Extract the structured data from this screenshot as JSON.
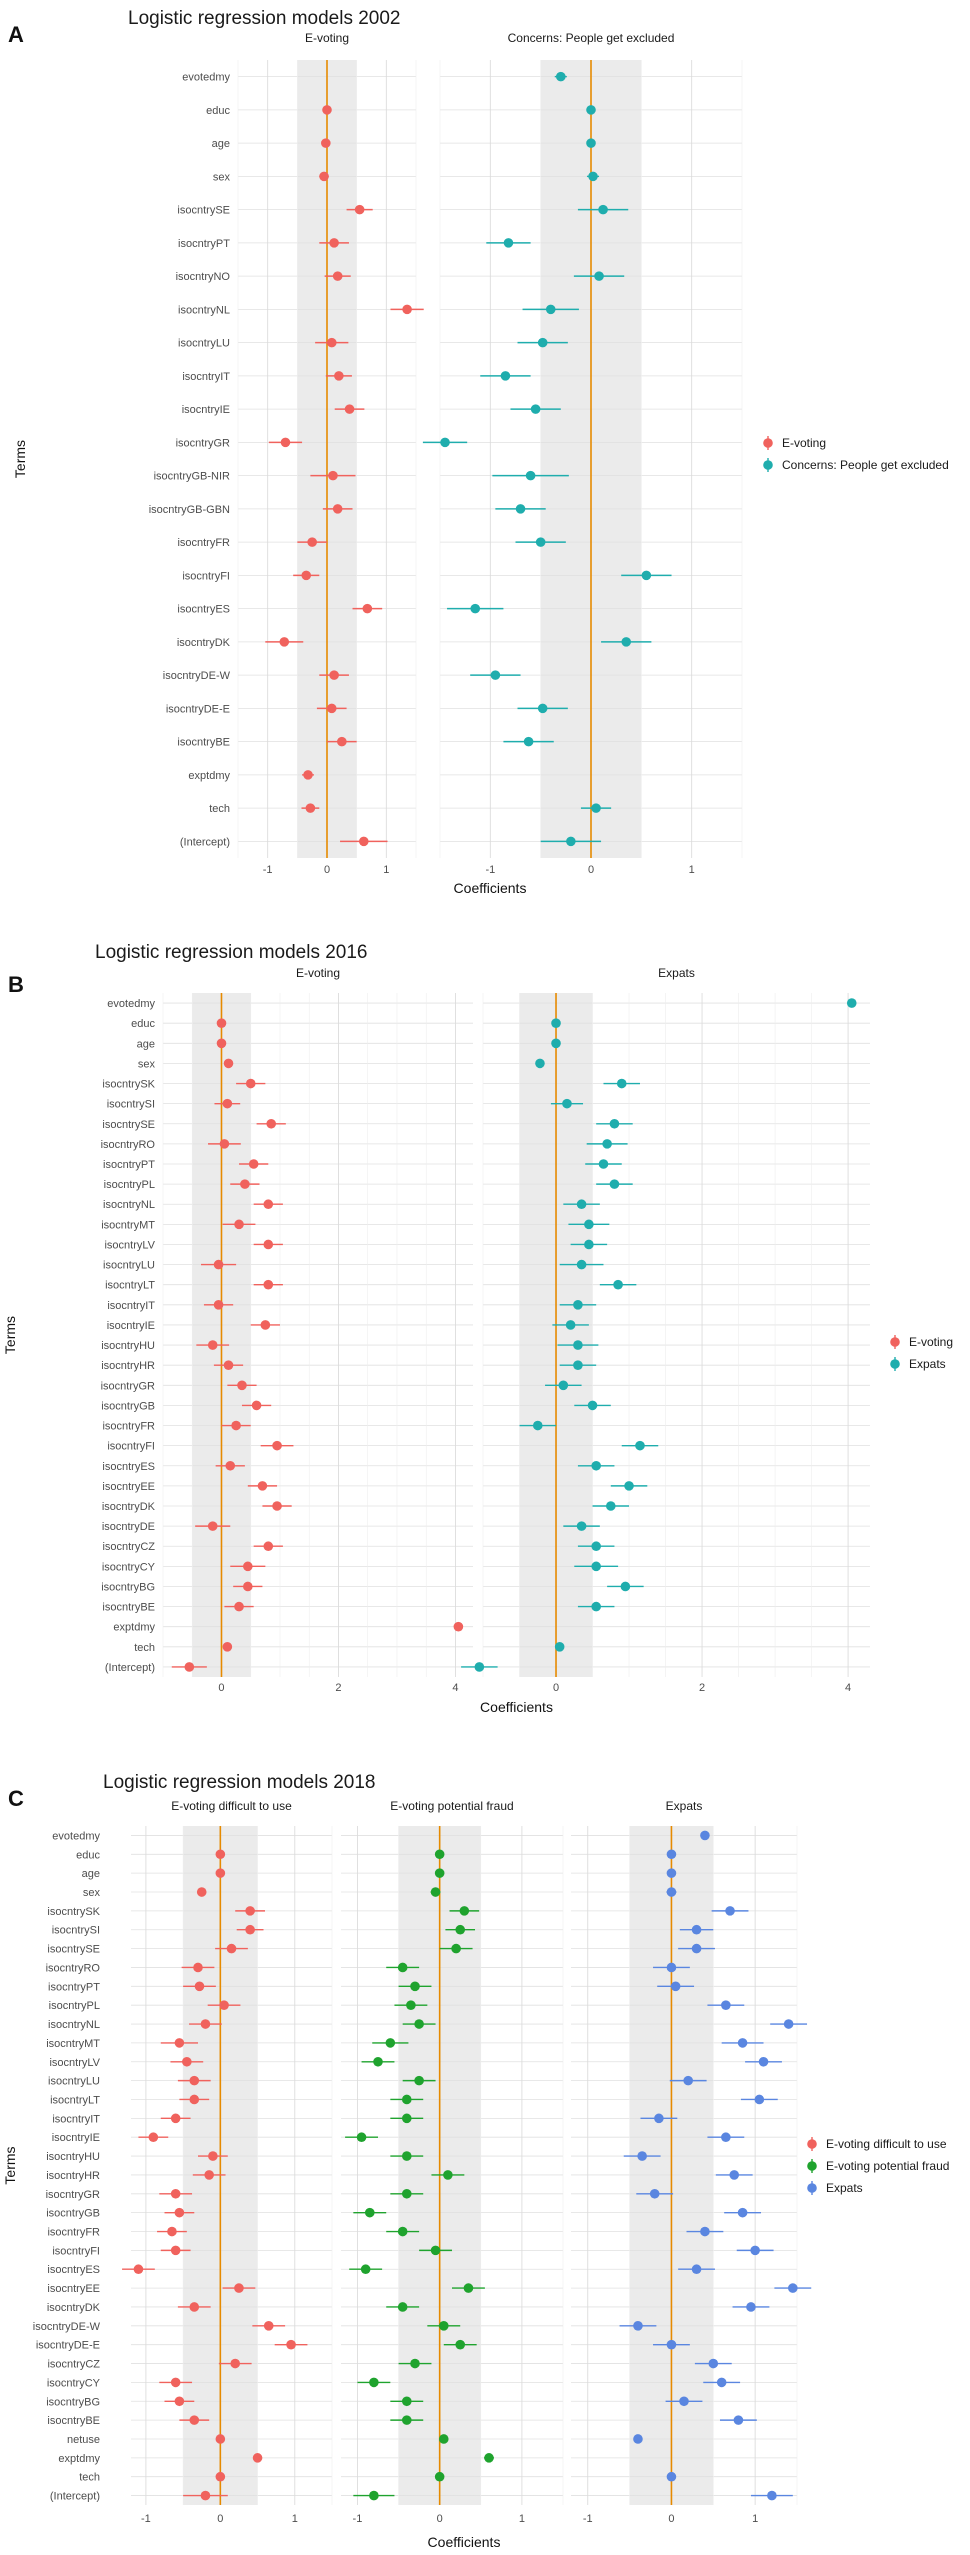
{
  "chart_data": [
    {
      "type": "scatter",
      "panel_label": "A",
      "title": "Logistic regression models 2002",
      "xlabel": "Coefficients",
      "ylabel": "Terms",
      "xlim": [
        -1.5,
        1.5
      ],
      "xticks": [
        -1,
        0,
        1
      ],
      "shade": [
        -0.5,
        0.5
      ],
      "terms": [
        "evotedmy",
        "educ",
        "age",
        "sex",
        "isocntrySE",
        "isocntryPT",
        "isocntryNO",
        "isocntryNL",
        "isocntryLU",
        "isocntryIT",
        "isocntryIE",
        "isocntryGR",
        "isocntryGB-NIR",
        "isocntryGB-GBN",
        "isocntryFR",
        "isocntryFI",
        "isocntryES",
        "isocntryDK",
        "isocntryDE-W",
        "isocntryDE-E",
        "isocntryBE",
        "exptdmy",
        "tech",
        "(Intercept)"
      ],
      "series": [
        {
          "name": "E-voting",
          "color": "#F0625D",
          "facet": "E-voting",
          "values": [
            null,
            0.0,
            -0.02,
            -0.05,
            0.55,
            0.12,
            0.18,
            1.35,
            0.08,
            0.2,
            0.38,
            -0.7,
            0.1,
            0.18,
            -0.25,
            -0.35,
            0.68,
            -0.72,
            0.12,
            0.08,
            0.25,
            -0.32,
            -0.28,
            0.62
          ],
          "errors": [
            null,
            0.04,
            0.04,
            0.08,
            0.22,
            0.25,
            0.22,
            0.28,
            0.28,
            0.22,
            0.25,
            0.28,
            0.38,
            0.25,
            0.25,
            0.22,
            0.25,
            0.32,
            0.25,
            0.25,
            0.25,
            0.1,
            0.15,
            0.4
          ]
        },
        {
          "name": "Concerns: People get excluded",
          "color": "#1FADAD",
          "facet": "Concerns: People get excluded",
          "values": [
            -0.3,
            0.0,
            0.0,
            0.02,
            0.12,
            -0.82,
            0.08,
            -0.4,
            -0.48,
            -0.85,
            -0.55,
            -1.45,
            -0.6,
            -0.7,
            -0.5,
            0.55,
            -1.15,
            0.35,
            -0.95,
            -0.48,
            -0.62,
            null,
            0.05,
            -0.2
          ],
          "errors": [
            0.06,
            0.03,
            0.03,
            0.06,
            0.25,
            0.22,
            0.25,
            0.28,
            0.25,
            0.25,
            0.25,
            0.22,
            0.38,
            0.25,
            0.25,
            0.25,
            0.28,
            0.25,
            0.25,
            0.25,
            0.25,
            null,
            0.15,
            0.3
          ]
        }
      ],
      "legend_position": "right"
    },
    {
      "type": "scatter",
      "panel_label": "B",
      "title": "Logistic regression models 2016",
      "xlabel": "Coefficients",
      "ylabel": "Terms",
      "xlim": [
        -1.0,
        4.3
      ],
      "xticks": [
        0,
        2,
        4
      ],
      "shade": [
        -0.5,
        0.5
      ],
      "terms": [
        "evotedmy",
        "educ",
        "age",
        "sex",
        "isocntrySK",
        "isocntrySI",
        "isocntrySE",
        "isocntryRO",
        "isocntryPT",
        "isocntryPL",
        "isocntryNL",
        "isocntryMT",
        "isocntryLV",
        "isocntryLU",
        "isocntryLT",
        "isocntryIT",
        "isocntryIE",
        "isocntryHU",
        "isocntryHR",
        "isocntryGR",
        "isocntryGB",
        "isocntryFR",
        "isocntryFI",
        "isocntryES",
        "isocntryEE",
        "isocntryDK",
        "isocntryDE",
        "isocntryCZ",
        "isocntryCY",
        "isocntryBG",
        "isocntryBE",
        "exptdmy",
        "tech",
        "(Intercept)"
      ],
      "series": [
        {
          "name": "E-voting",
          "color": "#F0625D",
          "facet": "E-voting",
          "values": [
            null,
            0.0,
            0.0,
            0.12,
            0.5,
            0.1,
            0.85,
            0.05,
            0.55,
            0.4,
            0.8,
            0.3,
            0.8,
            -0.05,
            0.8,
            -0.05,
            0.75,
            -0.15,
            0.12,
            0.35,
            0.6,
            0.25,
            0.95,
            0.15,
            0.7,
            0.95,
            -0.15,
            0.8,
            0.45,
            0.45,
            0.3,
            4.05,
            0.1,
            -0.55
          ],
          "errors": [
            null,
            0.03,
            0.03,
            0.06,
            0.25,
            0.22,
            0.25,
            0.28,
            0.25,
            0.25,
            0.25,
            0.28,
            0.25,
            0.3,
            0.25,
            0.25,
            0.25,
            0.28,
            0.25,
            0.25,
            0.25,
            0.25,
            0.28,
            0.25,
            0.25,
            0.25,
            0.3,
            0.25,
            0.3,
            0.25,
            0.25,
            0.06,
            0.05,
            0.3
          ]
        },
        {
          "name": "Expats",
          "color": "#1FADAD",
          "facet": "Expats",
          "values": [
            4.05,
            0.0,
            0.0,
            -0.22,
            0.9,
            0.15,
            0.8,
            0.7,
            0.65,
            0.8,
            0.35,
            0.45,
            0.45,
            0.35,
            0.85,
            0.3,
            0.2,
            0.3,
            0.3,
            0.1,
            0.5,
            -0.25,
            1.15,
            0.55,
            1.0,
            0.75,
            0.35,
            0.55,
            0.55,
            0.95,
            0.55,
            null,
            0.05,
            -1.05
          ],
          "errors": [
            0.06,
            0.03,
            0.03,
            0.06,
            0.25,
            0.22,
            0.25,
            0.28,
            0.25,
            0.25,
            0.25,
            0.28,
            0.25,
            0.3,
            0.25,
            0.25,
            0.25,
            0.28,
            0.25,
            0.25,
            0.25,
            0.25,
            0.25,
            0.25,
            0.25,
            0.25,
            0.25,
            0.25,
            0.3,
            0.25,
            0.25,
            null,
            0.05,
            0.25
          ]
        }
      ],
      "legend_position": "right"
    },
    {
      "type": "scatter",
      "panel_label": "C",
      "title": "Logistic regression models 2018",
      "xlabel": "Coefficients",
      "ylabel": "Terms",
      "xlim": [
        -1.2,
        1.5
      ],
      "xticks": [
        -1,
        0,
        1
      ],
      "shade": [
        -0.5,
        0.5
      ],
      "terms": [
        "evotedmy",
        "educ",
        "age",
        "sex",
        "isocntrySK",
        "isocntrySI",
        "isocntrySE",
        "isocntryRO",
        "isocntryPT",
        "isocntryPL",
        "isocntryNL",
        "isocntryMT",
        "isocntryLV",
        "isocntryLU",
        "isocntryLT",
        "isocntryIT",
        "isocntryIE",
        "isocntryHU",
        "isocntryHR",
        "isocntryGR",
        "isocntryGB",
        "isocntryFR",
        "isocntryFI",
        "isocntryES",
        "isocntryEE",
        "isocntryDK",
        "isocntryDE-W",
        "isocntryDE-E",
        "isocntryCZ",
        "isocntryCY",
        "isocntryBG",
        "isocntryBE",
        "netuse",
        "exptdmy",
        "tech",
        "(Intercept)"
      ],
      "series": [
        {
          "name": "E-voting difficult to use",
          "color": "#F0625D",
          "facet": "E-voting difficult to use",
          "values": [
            null,
            0.0,
            0.0,
            -0.25,
            0.4,
            0.4,
            0.15,
            -0.3,
            -0.28,
            0.05,
            -0.2,
            -0.55,
            -0.45,
            -0.35,
            -0.35,
            -0.6,
            -0.9,
            -0.1,
            -0.15,
            -0.6,
            -0.55,
            -0.65,
            -0.6,
            -1.1,
            0.25,
            -0.35,
            0.65,
            0.95,
            0.2,
            -0.6,
            -0.55,
            -0.35,
            0.0,
            0.5,
            0.0,
            -0.2
          ],
          "errors": [
            null,
            0.03,
            0.03,
            0.06,
            0.2,
            0.18,
            0.22,
            0.22,
            0.22,
            0.22,
            0.22,
            0.25,
            0.22,
            0.22,
            0.2,
            0.2,
            0.2,
            0.2,
            0.22,
            0.22,
            0.2,
            0.2,
            0.2,
            0.22,
            0.22,
            0.22,
            0.22,
            0.22,
            0.22,
            0.22,
            0.2,
            0.2,
            0.03,
            0.06,
            0.03,
            0.3
          ]
        },
        {
          "name": "E-voting potential fraud",
          "color": "#1FA32E",
          "facet": "E-voting potential fraud",
          "values": [
            null,
            0.0,
            0.0,
            -0.05,
            0.3,
            0.25,
            0.2,
            -0.45,
            -0.3,
            -0.35,
            -0.25,
            -0.6,
            -0.75,
            -0.25,
            -0.4,
            -0.4,
            -0.95,
            -0.4,
            0.1,
            -0.4,
            -0.85,
            -0.45,
            -0.05,
            -0.9,
            0.35,
            -0.45,
            0.05,
            0.25,
            -0.3,
            -0.8,
            -0.4,
            -0.4,
            0.05,
            0.6,
            0.0,
            -0.8
          ],
          "errors": [
            null,
            0.03,
            0.03,
            0.06,
            0.18,
            0.18,
            0.2,
            0.2,
            0.2,
            0.2,
            0.2,
            0.22,
            0.2,
            0.2,
            0.2,
            0.2,
            0.2,
            0.2,
            0.2,
            0.2,
            0.2,
            0.2,
            0.2,
            0.2,
            0.2,
            0.2,
            0.2,
            0.2,
            0.2,
            0.2,
            0.2,
            0.2,
            0.03,
            0.06,
            0.03,
            0.25
          ]
        },
        {
          "name": "Expats",
          "color": "#5A86E0",
          "facet": "Expats",
          "values": [
            0.4,
            0.0,
            0.0,
            0.0,
            0.7,
            0.3,
            0.3,
            0.0,
            0.05,
            0.65,
            1.4,
            0.85,
            1.1,
            0.2,
            1.05,
            -0.15,
            0.65,
            -0.35,
            0.75,
            -0.2,
            0.85,
            0.4,
            1.0,
            0.3,
            1.45,
            0.95,
            -0.4,
            0.0,
            0.5,
            0.6,
            0.15,
            0.8,
            -0.4,
            null,
            0.0,
            1.2
          ],
          "errors": [
            0.04,
            0.03,
            0.03,
            0.06,
            0.22,
            0.2,
            0.22,
            0.22,
            0.22,
            0.22,
            0.22,
            0.25,
            0.22,
            0.22,
            0.22,
            0.22,
            0.22,
            0.22,
            0.22,
            0.22,
            0.22,
            0.22,
            0.22,
            0.22,
            0.22,
            0.22,
            0.22,
            0.22,
            0.22,
            0.22,
            0.22,
            0.22,
            0.04,
            null,
            0.04,
            0.25
          ]
        }
      ],
      "legend_position": "right"
    }
  ]
}
